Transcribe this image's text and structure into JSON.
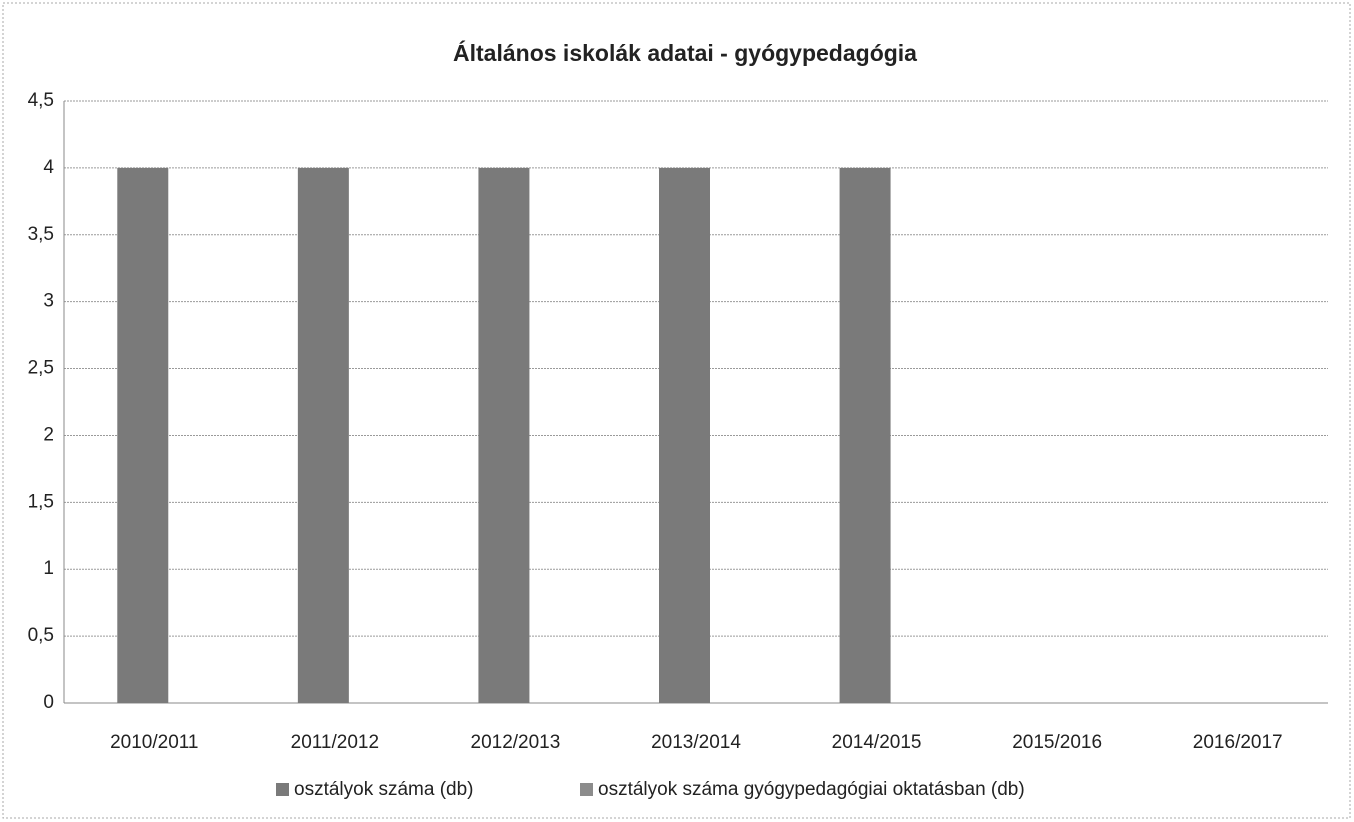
{
  "chart_data": {
    "type": "bar",
    "title": "Általános iskolák adatai - gyógypedagógia",
    "categories": [
      "2010/2011",
      "2011/2012",
      "2012/2013",
      "2013/2014",
      "2014/2015",
      "2015/2016",
      "2016/2017"
    ],
    "series": [
      {
        "name": "osztályok száma (db)",
        "color": "#7a7a7a",
        "values": [
          4,
          4,
          4,
          4,
          4,
          null,
          null
        ]
      },
      {
        "name": "osztályok száma gyógypedagógiai oktatásban (db)",
        "color": "#8c8c8c",
        "values": [
          0,
          0,
          0,
          0,
          0,
          null,
          null
        ]
      }
    ],
    "ylim": [
      0,
      4.5
    ],
    "yticks": [
      0,
      {
        "value": 0.5,
        "label": "0,5"
      },
      1,
      {
        "value": 1.5,
        "label": "1,5"
      },
      2,
      {
        "value": 2.5,
        "label": "2,5"
      },
      3,
      {
        "value": 3.5,
        "label": "3,5"
      },
      4,
      {
        "value": 4.5,
        "label": "4,5"
      }
    ],
    "grid": true,
    "legend": "bottom"
  }
}
